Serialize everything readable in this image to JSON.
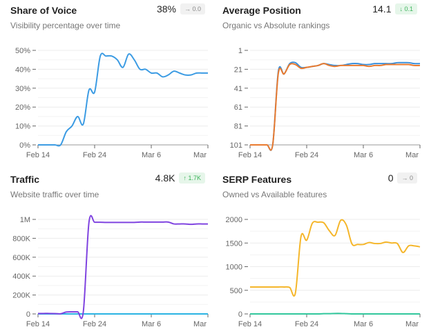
{
  "panels": [
    {
      "title": "Share of Voice",
      "subtitle": "Visibility percentage over time",
      "value": "38%",
      "badge": "→ 0.0",
      "badge_type": "neutral"
    },
    {
      "title": "Average Position",
      "subtitle": "Organic vs Absolute rankings",
      "value": "14.1",
      "badge": "↓ 0.1",
      "badge_type": "up"
    },
    {
      "title": "Traffic",
      "subtitle": "Website traffic over time",
      "value": "4.8K",
      "badge": "↑ 1.7K",
      "badge_type": "up"
    },
    {
      "title": "SERP Features",
      "subtitle": "Owned vs Available features",
      "value": "0",
      "badge": "→ 0",
      "badge_type": "neutral"
    }
  ],
  "chart_data": [
    {
      "type": "line",
      "x_ticks": [
        "Feb 14",
        "Feb 24",
        "Mar 6",
        "Mar"
      ],
      "x_days": 31,
      "ylim": [
        0,
        50
      ],
      "y_ticks": [
        "0%",
        "10%",
        "20%",
        "30%",
        "40%",
        "50%"
      ],
      "y_tick_values": [
        0,
        10,
        20,
        30,
        40,
        50
      ],
      "inverted": false,
      "grid": true,
      "series": [
        {
          "color": "#3b9be3",
          "values": [
            0,
            0,
            0,
            0,
            0,
            7,
            10,
            15,
            11,
            29,
            28,
            47,
            47,
            47,
            45,
            41,
            48,
            45,
            40,
            40,
            38,
            38,
            36,
            37,
            39,
            38,
            37,
            37,
            38,
            38,
            38
          ]
        }
      ]
    },
    {
      "type": "line",
      "x_ticks": [
        "Feb 14",
        "Feb 24",
        "Mar 6",
        "Mar"
      ],
      "x_days": 31,
      "ylim": [
        1,
        101
      ],
      "y_ticks": [
        "1",
        "21",
        "41",
        "61",
        "81",
        "101"
      ],
      "y_tick_values": [
        1,
        21,
        41,
        61,
        81,
        101
      ],
      "inverted": true,
      "grid": true,
      "series": [
        {
          "color": "#3b8fd9",
          "values": [
            101,
            101,
            101,
            101,
            101,
            23,
            26,
            15,
            14,
            19,
            19,
            18,
            17,
            15,
            16,
            17,
            17,
            16,
            15,
            15,
            16,
            16,
            15,
            15,
            15,
            15,
            14,
            14,
            14,
            15,
            15
          ]
        },
        {
          "color": "#ea7a2e",
          "values": [
            101,
            101,
            101,
            101,
            101,
            25,
            26,
            16,
            16,
            20,
            19,
            18,
            17,
            15,
            17,
            18,
            17,
            17,
            17,
            17,
            17,
            18,
            17,
            17,
            16,
            16,
            16,
            16,
            16,
            17,
            17
          ]
        }
      ]
    },
    {
      "type": "line",
      "x_ticks": [
        "Feb 14",
        "Feb 24",
        "Mar 6",
        "Mar"
      ],
      "x_days": 31,
      "ylim": [
        0,
        1000000
      ],
      "y_ticks": [
        "0",
        "200K",
        "400K",
        "600K",
        "800K",
        "1M"
      ],
      "y_tick_values": [
        0,
        200000,
        400000,
        600000,
        800000,
        1000000
      ],
      "inverted": false,
      "grid": true,
      "series": [
        {
          "color": "#2ab3e3",
          "values": [
            0,
            0,
            0,
            0,
            0,
            0,
            0,
            0,
            0,
            0,
            0,
            0,
            0,
            0,
            0,
            0,
            0,
            0,
            0,
            0,
            0,
            0,
            0,
            0,
            0,
            0,
            0,
            0,
            0,
            0,
            0
          ]
        },
        {
          "color": "#7f43e0",
          "values": [
            5000,
            5000,
            5000,
            4000,
            2000,
            20000,
            22000,
            22000,
            22000,
            970000,
            970000,
            970000,
            968000,
            968000,
            968000,
            968000,
            968000,
            968000,
            972000,
            972000,
            972000,
            972000,
            972000,
            972000,
            952000,
            952000,
            952000,
            948000,
            952000,
            952000,
            952000
          ]
        }
      ]
    },
    {
      "type": "line",
      "x_ticks": [
        "Feb 14",
        "Feb 24",
        "Mar 6",
        "Mar"
      ],
      "x_days": 31,
      "ylim": [
        0,
        2000
      ],
      "y_ticks": [
        "0",
        "500",
        "1000",
        "1500",
        "2000"
      ],
      "y_tick_values": [
        0,
        500,
        1000,
        1500,
        2000
      ],
      "inverted": false,
      "grid": true,
      "series": [
        {
          "color": "#30c79c",
          "values": [
            0,
            0,
            0,
            0,
            0,
            0,
            0,
            0,
            0,
            0,
            0,
            0,
            0,
            5,
            5,
            10,
            10,
            5,
            0,
            0,
            0,
            0,
            0,
            0,
            0,
            0,
            0,
            0,
            0,
            0,
            0
          ]
        },
        {
          "color": "#f5b62a",
          "values": [
            570,
            570,
            570,
            570,
            570,
            570,
            570,
            560,
            440,
            1640,
            1560,
            1920,
            1940,
            1930,
            1760,
            1660,
            1980,
            1880,
            1480,
            1470,
            1470,
            1510,
            1490,
            1490,
            1520,
            1500,
            1490,
            1300,
            1440,
            1440,
            1420
          ]
        }
      ]
    }
  ]
}
